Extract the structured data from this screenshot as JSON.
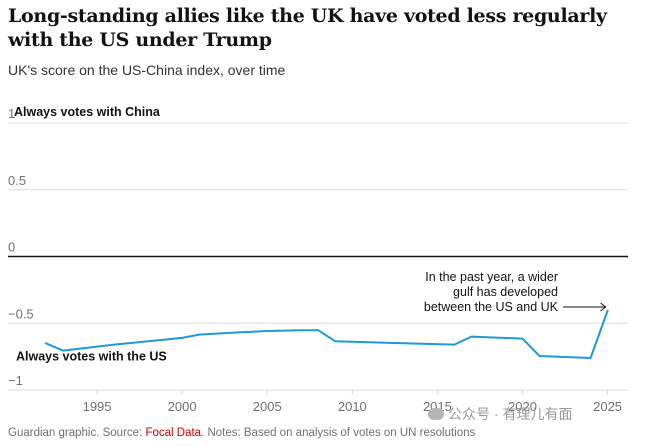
{
  "header": {
    "title": "Long-standing allies like the UK have voted less regularly with the US under Trump",
    "subtitle": "UK's score on the US-China index, over time"
  },
  "chart_data": {
    "type": "line",
    "title": "Long-standing allies like the UK have voted less regularly with the US under Trump",
    "subtitle": "UK's score on the US-China index, over time",
    "xlabel": "",
    "ylabel": "",
    "xlim": [
      1991,
      2026.2
    ],
    "ylim": [
      -1,
      1
    ],
    "x_ticks": [
      1995,
      2000,
      2005,
      2010,
      2015,
      2020,
      2025
    ],
    "y_ticks": [
      {
        "value": 1,
        "label": "1"
      },
      {
        "value": 0.5,
        "label": "0.5"
      },
      {
        "value": 0,
        "label": "0"
      },
      {
        "value": -0.5,
        "label": "−0.5"
      },
      {
        "value": -1,
        "label": "−1"
      }
    ],
    "grid": true,
    "series": [
      {
        "name": "UK",
        "color": "#1b9bd6",
        "x": [
          1992,
          1993,
          1996,
          2000,
          2001,
          2003,
          2005,
          2007,
          2008,
          2009,
          2016,
          2017,
          2020,
          2021,
          2024,
          2025
        ],
        "y": [
          -0.65,
          -0.705,
          -0.66,
          -0.61,
          -0.585,
          -0.57,
          -0.558,
          -0.552,
          -0.552,
          -0.635,
          -0.66,
          -0.6,
          -0.615,
          -0.745,
          -0.76,
          -0.405
        ]
      }
    ],
    "axis_notes": {
      "top": "Always votes with China",
      "bottom": "Always votes with the US"
    },
    "annotation": {
      "lines": [
        "In the past year, a wider",
        "gulf has developed",
        "between the US and UK"
      ],
      "points_to": {
        "x": 2025,
        "y": -0.405
      }
    }
  },
  "footer": {
    "prefix": "Guardian graphic. Source: ",
    "source": "Focal Data",
    "suffix": ". Notes: Based on analysis of votes on UN resolutions"
  },
  "watermark": {
    "text": "公众号 · 有理儿有面"
  },
  "colors": {
    "line": "#1b9bd6",
    "grid": "#dcdcdc",
    "zero_line": "#121212",
    "text": "#121212",
    "muted": "#707070",
    "link": "#c70000"
  }
}
